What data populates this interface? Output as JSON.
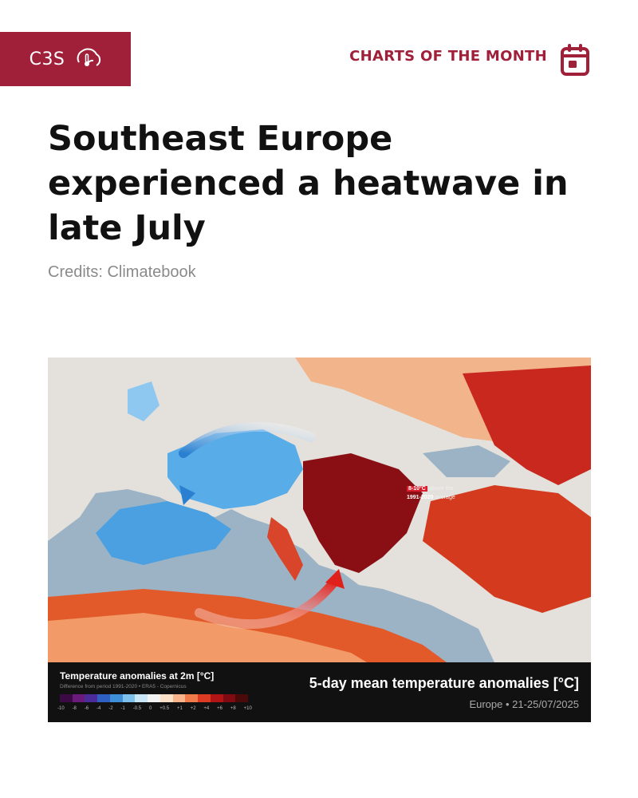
{
  "brand": {
    "name": "C3S",
    "logo_icon": "thermometer-cloud-icon",
    "color": "#a0203a"
  },
  "header": {
    "section_label": "CHARTS OF THE MONTH",
    "section_icon": "calendar-icon"
  },
  "article": {
    "headline": "Southeast Europe experienced a heatwave in late July",
    "credits": "Credits: Climatebook"
  },
  "map": {
    "panel_title": "5-day mean temperature anomalies [°C]",
    "panel_subtitle": "Europe • 21-25/07/2025",
    "callout": {
      "badge": "8-10°C",
      "text_1": "above the",
      "text_2_bold": "1991-2020",
      "text_3": "average"
    },
    "legend": {
      "title": "Temperature anomalies at 2m [°C]",
      "subtitle": "Difference from period 1991-2020 • ERA5 - Copernicus",
      "ticks": [
        "-10",
        "-8",
        "-6",
        "-4",
        "-2",
        "-1",
        "-0.5",
        "0",
        "+0.5",
        "+1",
        "+2",
        "+4",
        "+6",
        "+8",
        "+10"
      ],
      "colors": [
        "#3b0a45",
        "#6a1a7a",
        "#4b2b9a",
        "#2f5fc0",
        "#3f8fd8",
        "#7ec0ec",
        "#c9e6f7",
        "#f2f2f2",
        "#fde0c8",
        "#f9b48a",
        "#f07a4a",
        "#dc3a22",
        "#b01414",
        "#800a12",
        "#4a0a0a"
      ]
    }
  }
}
